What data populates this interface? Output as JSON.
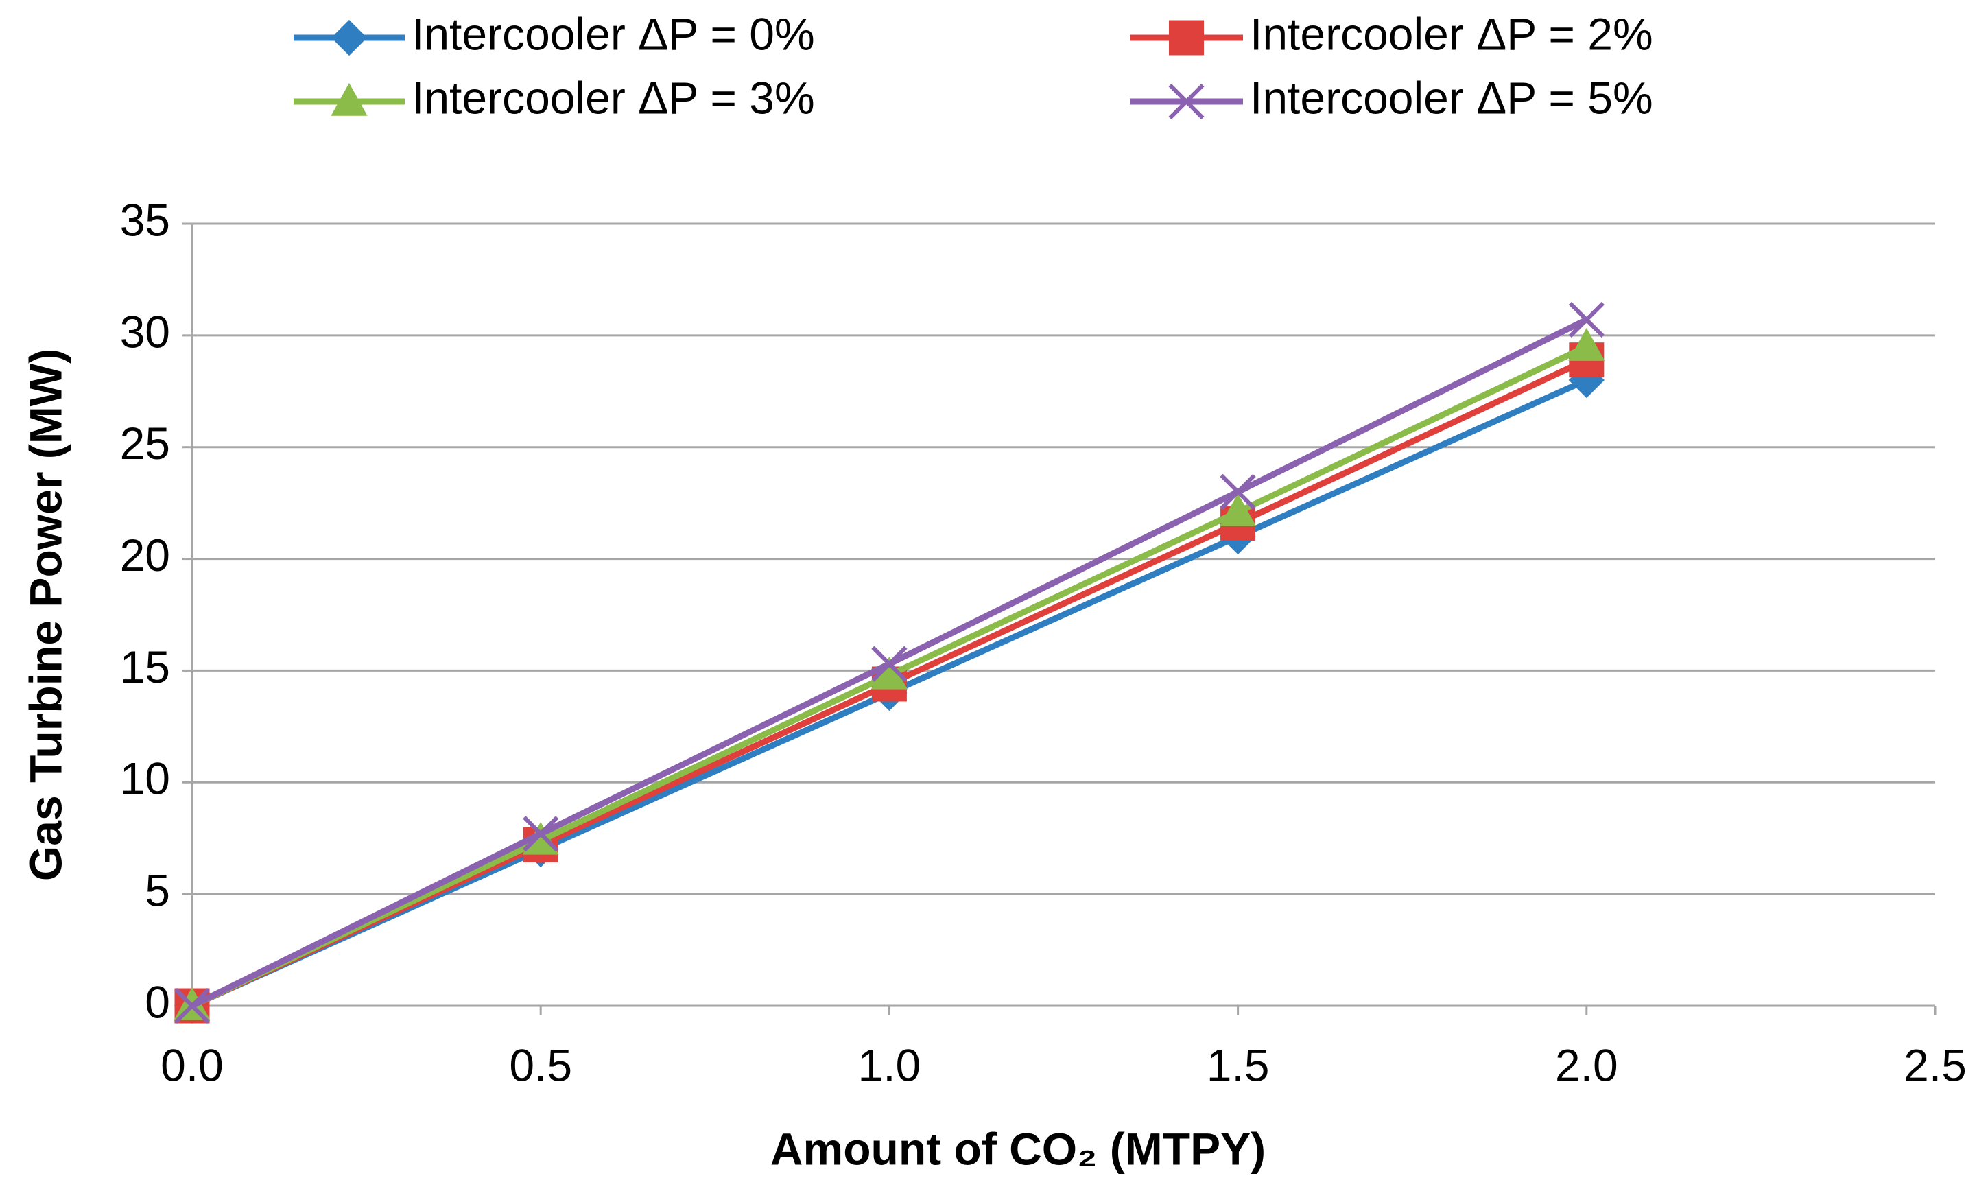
{
  "chart_data": {
    "type": "line",
    "xlabel": "Amount of CO₂ (MTPY)",
    "ylabel": "Gas Turbine Power (MW)",
    "x": [
      0,
      0.5,
      1,
      1.5,
      2
    ],
    "xlim": [
      0,
      2.5
    ],
    "xticks": [
      {
        "value": 0,
        "label": "0.0"
      },
      0.5,
      {
        "value": 1,
        "label": "1.0"
      },
      1.5,
      {
        "value": 2,
        "label": "2.0"
      },
      2.5
    ],
    "ylim": [
      0,
      35
    ],
    "yticks": [
      0,
      5,
      10,
      15,
      20,
      25,
      30,
      35
    ],
    "grid": true,
    "legend": "top",
    "series": [
      {
        "name": "Intercooler ΔP = 0%",
        "color": "#2f7ec1",
        "marker": "diamond",
        "values": [
          0,
          7,
          14,
          21,
          28
        ]
      },
      {
        "name": "Intercooler ΔP = 2%",
        "color": "#e0403c",
        "marker": "square",
        "values": [
          0,
          7.2,
          14.4,
          21.6,
          28.9
        ]
      },
      {
        "name": "Intercooler ΔP = 3%",
        "color": "#8bbb49",
        "marker": "triangle",
        "values": [
          0,
          7.4,
          14.8,
          22.1,
          29.5
        ]
      },
      {
        "name": "Intercooler ΔP = 5%",
        "color": "#8a62b0",
        "marker": "x",
        "values": [
          0,
          7.7,
          15.3,
          23,
          30.7
        ]
      }
    ]
  }
}
